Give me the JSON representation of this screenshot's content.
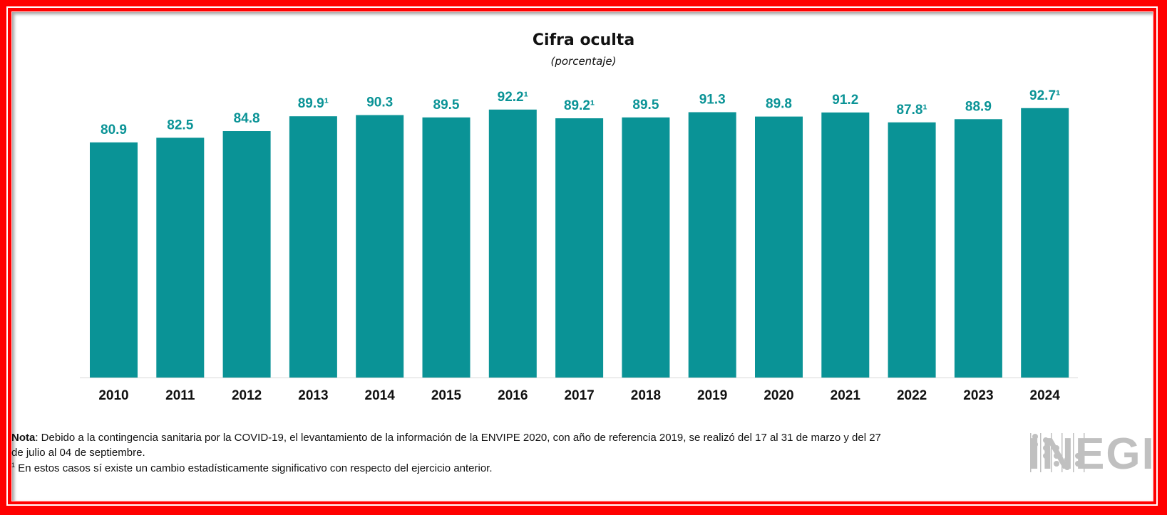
{
  "chart_data": {
    "type": "bar",
    "title": "Cifra oculta",
    "subtitle": "(porcentaje)",
    "categories": [
      "2010",
      "2011",
      "2012",
      "2013",
      "2014",
      "2015",
      "2016",
      "2017",
      "2018",
      "2019",
      "2020",
      "2021",
      "2022",
      "2023",
      "2024"
    ],
    "values": [
      80.9,
      82.5,
      84.8,
      89.9,
      90.3,
      89.5,
      92.2,
      89.2,
      89.5,
      91.3,
      89.8,
      91.2,
      87.8,
      88.9,
      92.7
    ],
    "data_labels": [
      "80.9",
      "82.5",
      "84.8",
      "89.9¹",
      "90.3",
      "89.5",
      "92.2¹",
      "89.2¹",
      "89.5",
      "91.3",
      "89.8",
      "91.2",
      "87.8¹",
      "88.9",
      "92.7¹"
    ],
    "ylim": [
      0,
      100
    ],
    "grid": false,
    "bar_color": "#0a9396",
    "label_color": "#0a9396"
  },
  "notes": {
    "nota_label": "Nota",
    "nota_text": ": Debido a la contingencia sanitaria por la COVID-19, el levantamiento de la información de la ENVIPE 2020, con año de referencia 2019, se realizó del 17 al 31 de marzo y del 27 de julio al 04 de septiembre.",
    "footnote_mark": "1",
    "footnote_text": " En estos casos sí existe un cambio estadísticamente significativo con respecto del ejercicio anterior."
  },
  "logo": {
    "text": "INEGI",
    "color": "#c0c0c0"
  },
  "frame_color": "#ff0000"
}
